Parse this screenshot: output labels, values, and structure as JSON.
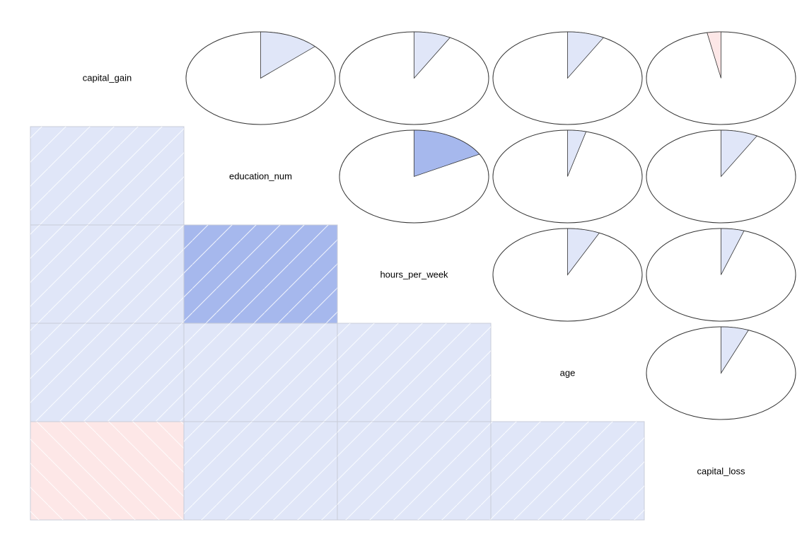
{
  "chart_data": {
    "type": "heatmap",
    "variables": [
      "capital_gain",
      "education_num",
      "hours_per_week",
      "age",
      "capital_loss"
    ],
    "correlations": [
      [
        1.0,
        0.13,
        0.08,
        0.08,
        -0.03
      ],
      [
        0.13,
        1.0,
        0.17,
        0.04,
        0.08
      ],
      [
        0.08,
        0.17,
        1.0,
        0.07,
        0.05
      ],
      [
        0.08,
        0.04,
        0.07,
        1.0,
        0.06
      ],
      [
        -0.03,
        0.08,
        0.05,
        0.06,
        1.0
      ]
    ],
    "lower_panel": "shade",
    "upper_panel": "pie",
    "diagonal": "text",
    "colors": {
      "positive_light": "#e0e6f8",
      "positive_strong": "#a6b8ed",
      "negative_light": "#fde7e7",
      "outline": "#333333",
      "cell_border": "#c8ccd8"
    }
  }
}
